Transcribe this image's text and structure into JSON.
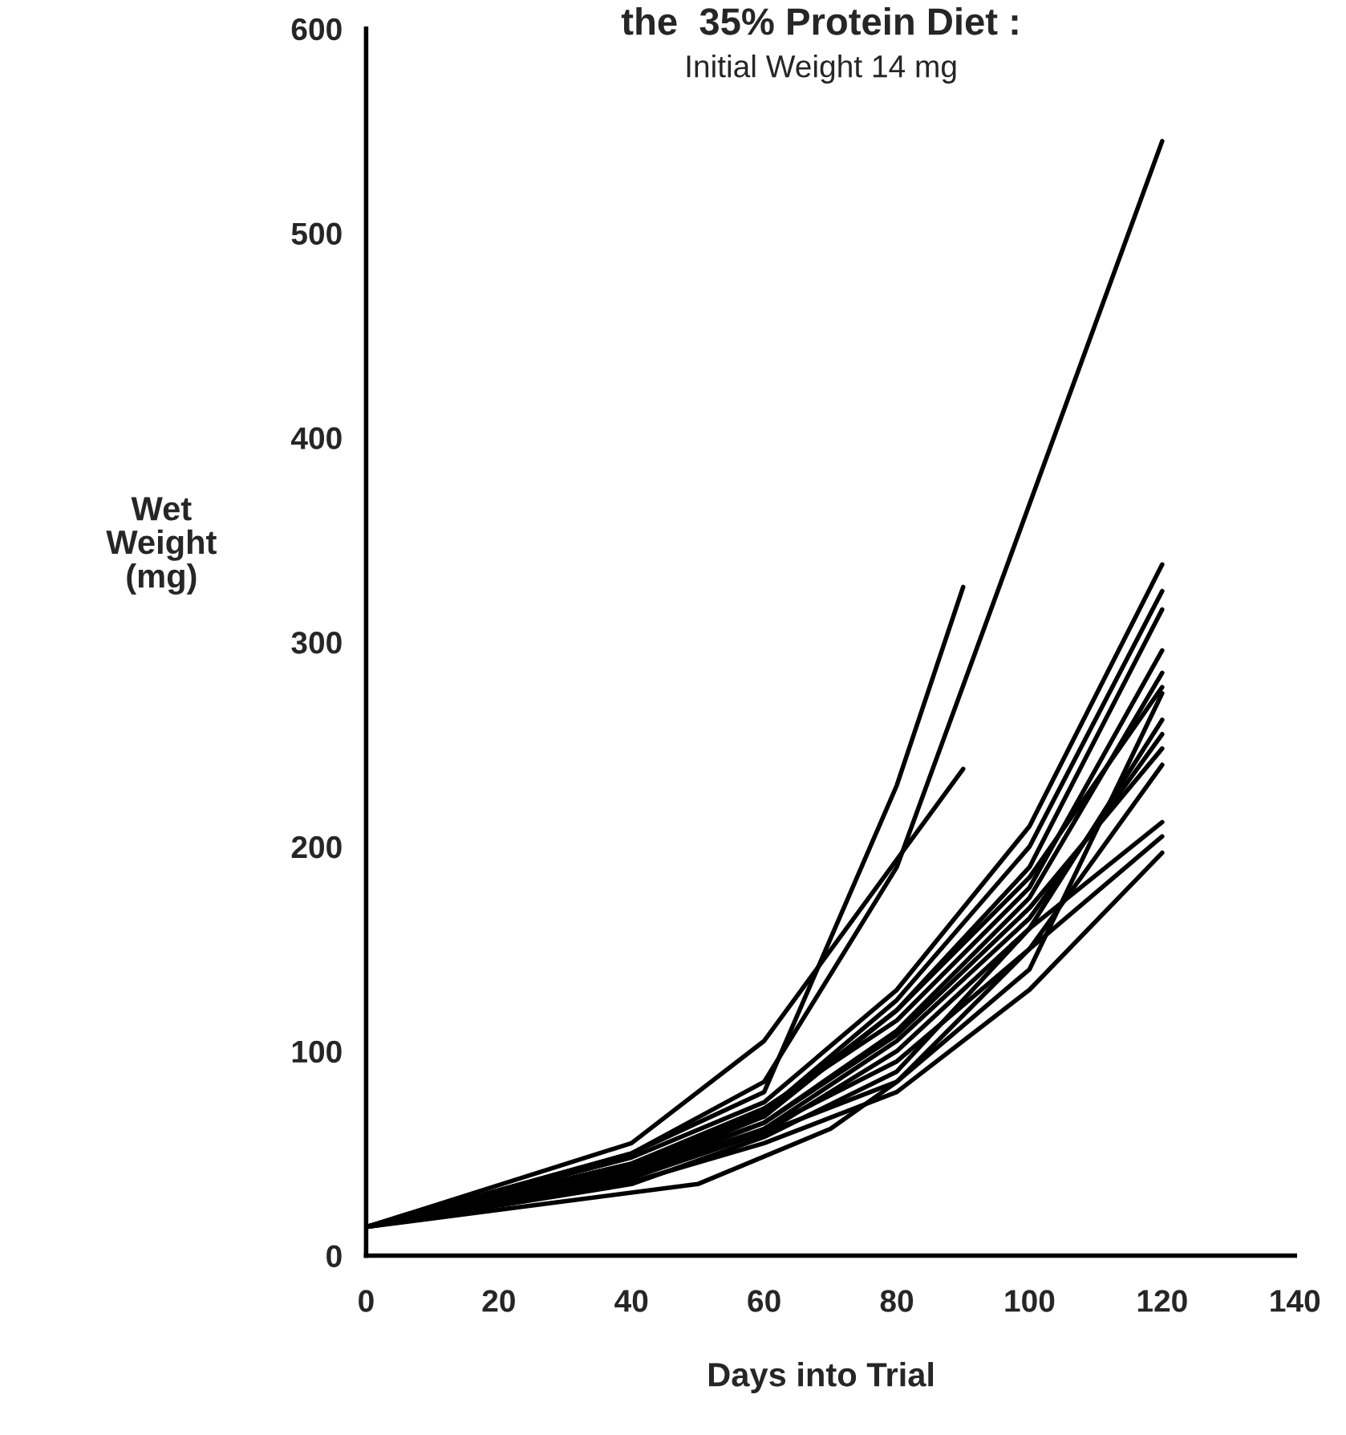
{
  "chart_data": {
    "type": "line",
    "title": "the  35% Protein Diet :",
    "subtitle": "Initial Weight 14 mg",
    "xlabel": "Days into Trial",
    "ylabel": "Wet\nWeight\n(mg)",
    "xlim": [
      0,
      140
    ],
    "xticks": [
      0,
      20,
      40,
      60,
      80,
      100,
      120,
      140
    ],
    "ylim": [
      0,
      600
    ],
    "yticks": [
      0,
      100,
      200,
      300,
      400,
      500,
      600
    ],
    "grid": false,
    "legend": false,
    "marker": "none",
    "line_style": "solid",
    "series": [
      {
        "color": "#000000",
        "x": [
          0,
          40,
          60,
          80,
          120
        ],
        "values": [
          14,
          50,
          85,
          190,
          545
        ]
      },
      {
        "color": "#000000",
        "x": [
          0,
          40,
          60,
          80,
          90
        ],
        "values": [
          14,
          50,
          80,
          230,
          327
        ]
      },
      {
        "color": "#000000",
        "x": [
          0,
          40,
          60,
          90
        ],
        "values": [
          14,
          55,
          105,
          238
        ]
      },
      {
        "color": "#000000",
        "x": [
          0,
          40,
          60,
          80,
          100,
          120
        ],
        "values": [
          14,
          48,
          75,
          130,
          210,
          338
        ]
      },
      {
        "color": "#000000",
        "x": [
          0,
          40,
          60,
          80,
          100,
          120
        ],
        "values": [
          14,
          45,
          70,
          125,
          200,
          325
        ]
      },
      {
        "color": "#000000",
        "x": [
          0,
          40,
          60,
          80,
          100,
          120
        ],
        "values": [
          14,
          42,
          68,
          120,
          190,
          316
        ]
      },
      {
        "color": "#000000",
        "x": [
          0,
          40,
          60,
          80,
          100,
          120
        ],
        "values": [
          14,
          45,
          72,
          115,
          180,
          296
        ]
      },
      {
        "color": "#000000",
        "x": [
          0,
          40,
          60,
          80,
          100,
          120
        ],
        "values": [
          14,
          40,
          65,
          110,
          175,
          285
        ]
      },
      {
        "color": "#000000",
        "x": [
          0,
          40,
          60,
          80,
          100,
          120
        ],
        "values": [
          14,
          43,
          70,
          120,
          185,
          278
        ]
      },
      {
        "color": "#000000",
        "x": [
          0,
          40,
          60,
          80,
          100,
          120
        ],
        "values": [
          14,
          40,
          60,
          85,
          140,
          275
        ]
      },
      {
        "color": "#000000",
        "x": [
          0,
          40,
          60,
          80,
          100,
          120
        ],
        "values": [
          14,
          38,
          60,
          100,
          160,
          262
        ]
      },
      {
        "color": "#000000",
        "x": [
          0,
          40,
          60,
          80,
          100,
          120
        ],
        "values": [
          14,
          40,
          62,
          105,
          165,
          255
        ]
      },
      {
        "color": "#000000",
        "x": [
          0,
          40,
          60,
          80,
          100,
          120
        ],
        "values": [
          14,
          42,
          65,
          108,
          170,
          248
        ]
      },
      {
        "color": "#000000",
        "x": [
          0,
          40,
          60,
          80,
          100,
          120
        ],
        "values": [
          14,
          38,
          62,
          95,
          150,
          240
        ]
      },
      {
        "color": "#000000",
        "x": [
          0,
          40,
          60,
          80,
          100,
          120
        ],
        "values": [
          14,
          35,
          58,
          90,
          160,
          212
        ]
      },
      {
        "color": "#000000",
        "x": [
          0,
          50,
          70,
          80,
          100,
          120
        ],
        "values": [
          14,
          35,
          62,
          85,
          150,
          205
        ]
      },
      {
        "color": "#000000",
        "x": [
          0,
          40,
          60,
          80,
          100,
          120
        ],
        "values": [
          14,
          36,
          55,
          80,
          130,
          197
        ]
      }
    ]
  }
}
